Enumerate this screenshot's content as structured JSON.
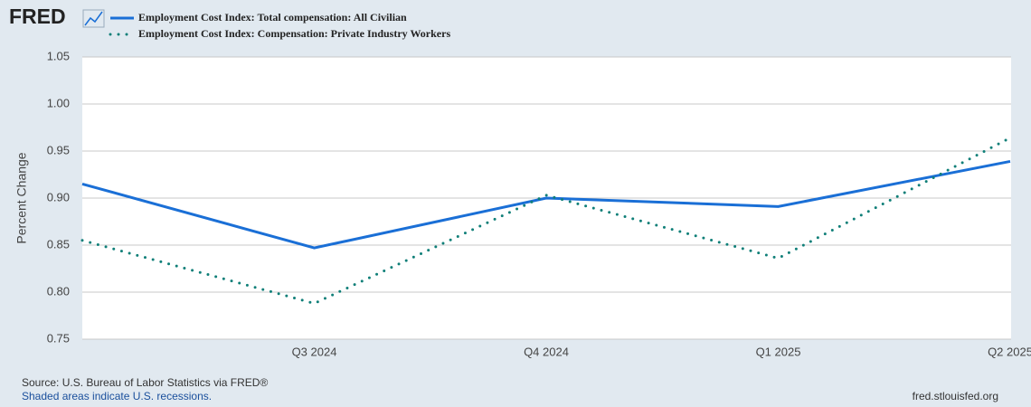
{
  "chart_data": {
    "type": "line",
    "logo": "FRED",
    "ylabel": "Percent Change",
    "categories": [
      null,
      "Q3 2024",
      "Q4 2024",
      "Q1 2025",
      "Q2 2025"
    ],
    "series": [
      {
        "name": "Employment Cost Index: Total compensation: All Civilian",
        "color": "#1a6fd6",
        "style": "solid",
        "values": [
          0.915,
          0.847,
          0.9,
          0.891,
          0.939
        ]
      },
      {
        "name": "Employment Cost Index: Compensation: Private Industry Workers",
        "color": "#0f7f78",
        "style": "dotted",
        "values": [
          0.855,
          0.788,
          0.903,
          0.836,
          0.964
        ]
      }
    ],
    "ylim": [
      0.75,
      1.05
    ],
    "yticks": [
      0.75,
      {
        "value": 0.8,
        "label": "0.80"
      },
      0.85,
      {
        "value": 0.9,
        "label": "0.90"
      },
      0.95,
      {
        "value": 1,
        "label": "1.00"
      },
      1.05
    ],
    "grid": true,
    "source": "Source: U.S. Bureau of Labor Statistics via FRED®",
    "note": "Shaded areas indicate U.S. recessions.",
    "credit": "fred.stlouisfed.org"
  }
}
